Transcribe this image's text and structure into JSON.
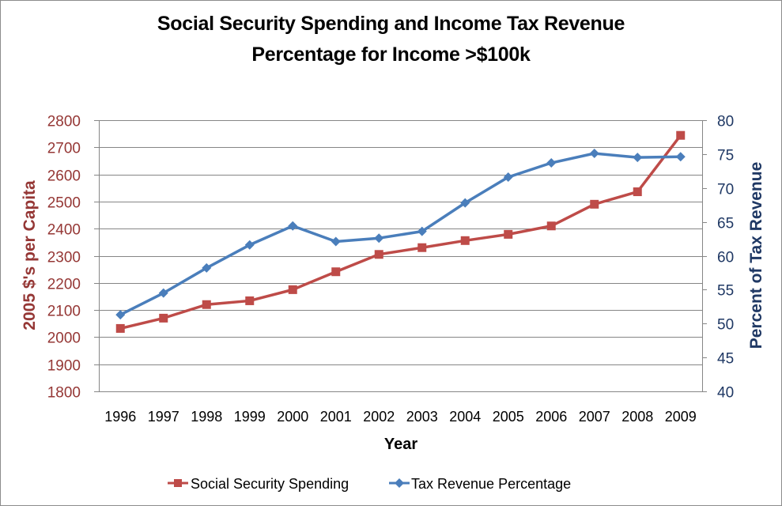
{
  "chart_data": {
    "type": "line",
    "title_line1": "Social Security Spending and Income Tax Revenue",
    "title_line2": "Percentage for Income >$100k",
    "xlabel": "Year",
    "ylabel_left": "2005 $'s per Capita",
    "ylabel_right": "Percent of Tax Revenue",
    "categories": [
      "1996",
      "1997",
      "1998",
      "1999",
      "2000",
      "2001",
      "2002",
      "2003",
      "2004",
      "2005",
      "2006",
      "2007",
      "2008",
      "2009"
    ],
    "ylim_left": [
      1800,
      2800
    ],
    "yticks_left": [
      1800,
      1900,
      2000,
      2100,
      2200,
      2300,
      2400,
      2500,
      2600,
      2700,
      2800
    ],
    "ylim_right": [
      40,
      80
    ],
    "yticks_right": [
      40,
      45,
      50,
      55,
      60,
      65,
      70,
      75,
      80
    ],
    "grid": true,
    "legend_position": "bottom",
    "series": [
      {
        "name": "Social Security Spending",
        "axis": "left",
        "marker": "square",
        "color": "#BE4B48",
        "values": [
          2032,
          2070,
          2120,
          2134,
          2175,
          2241,
          2305,
          2330,
          2356,
          2379,
          2410,
          2490,
          2536,
          2744
        ]
      },
      {
        "name": "Tax Revenue Percentage",
        "axis": "right",
        "marker": "diamond",
        "color": "#4A7EBB",
        "values": [
          51.3,
          54.5,
          58.2,
          61.6,
          64.4,
          62.1,
          62.6,
          63.6,
          67.8,
          71.6,
          73.7,
          75.1,
          74.5,
          74.6
        ]
      }
    ]
  }
}
